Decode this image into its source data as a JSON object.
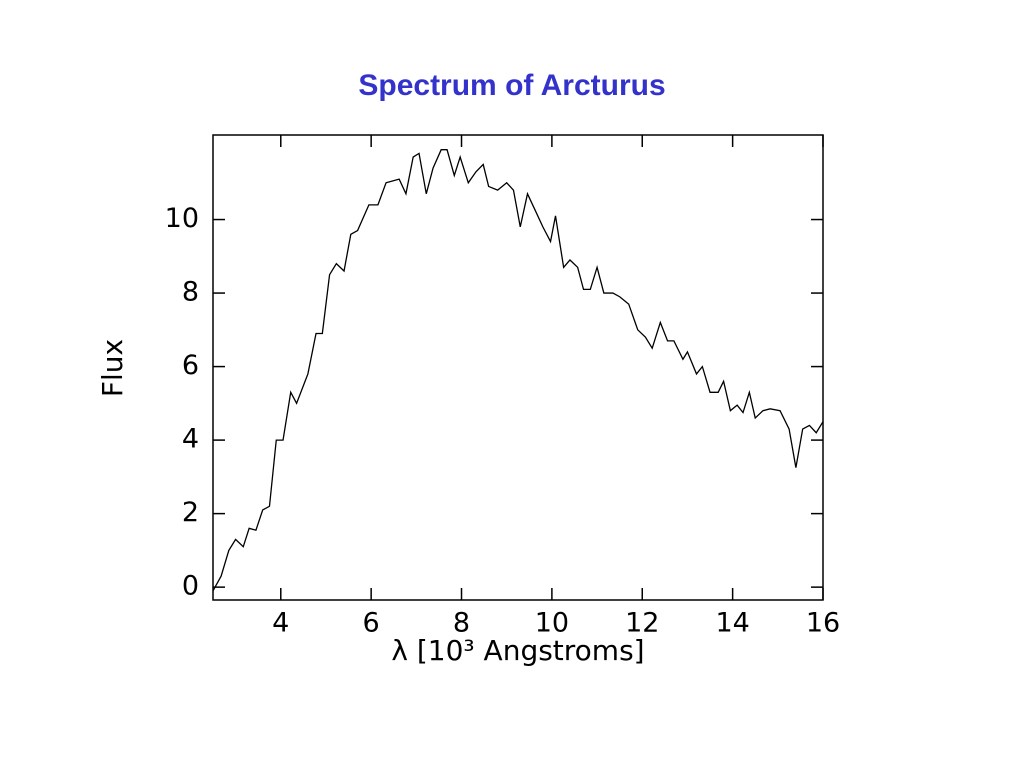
{
  "chart_data": {
    "type": "line",
    "title": "Spectrum of Arcturus",
    "x_label": "λ [10³ Angstroms]",
    "y_label": "Flux",
    "xlim": [
      2.5,
      16
    ],
    "ylim": [
      -0.35,
      12.3
    ],
    "xticks": [
      4,
      6,
      8,
      10,
      12,
      14,
      16
    ],
    "yticks": [
      0,
      2,
      4,
      6,
      8,
      10
    ],
    "series": [
      {
        "color": "#000000",
        "x": [
          2.5,
          2.68,
          2.85,
          3.0,
          3.17,
          3.3,
          3.45,
          3.6,
          3.75,
          3.9,
          4.05,
          4.22,
          4.35,
          4.6,
          4.78,
          4.92,
          5.08,
          5.23,
          5.4,
          5.55,
          5.7,
          5.95,
          6.15,
          6.33,
          6.62,
          6.77,
          6.93,
          7.06,
          7.22,
          7.37,
          7.55,
          7.68,
          7.84,
          7.97,
          8.15,
          8.32,
          8.48,
          8.6,
          8.8,
          9.0,
          9.15,
          9.3,
          9.46,
          9.65,
          9.8,
          9.97,
          10.08,
          10.26,
          10.4,
          10.57,
          10.7,
          10.85,
          11.0,
          11.15,
          11.35,
          11.5,
          11.7,
          11.9,
          12.07,
          12.22,
          12.4,
          12.56,
          12.7,
          12.9,
          13.0,
          13.2,
          13.33,
          13.5,
          13.68,
          13.8,
          13.95,
          14.1,
          14.23,
          14.37,
          14.5,
          14.67,
          14.83,
          15.05,
          15.25,
          15.4,
          15.55,
          15.7,
          15.85,
          16.0
        ],
        "values": [
          -0.1,
          0.3,
          1.0,
          1.3,
          1.1,
          1.6,
          1.55,
          2.1,
          2.2,
          4.0,
          4.0,
          5.3,
          5.0,
          5.8,
          6.9,
          6.9,
          8.5,
          8.8,
          8.6,
          9.6,
          9.7,
          10.4,
          10.4,
          11.0,
          11.1,
          10.7,
          11.7,
          11.8,
          10.7,
          11.4,
          11.9,
          11.9,
          11.2,
          11.7,
          11.0,
          11.3,
          11.5,
          10.9,
          10.8,
          11.0,
          10.8,
          9.8,
          10.7,
          10.2,
          9.8,
          9.4,
          10.1,
          8.7,
          8.9,
          8.7,
          8.1,
          8.1,
          8.7,
          8.0,
          8.0,
          7.9,
          7.7,
          7.0,
          6.8,
          6.5,
          7.2,
          6.7,
          6.7,
          6.2,
          6.4,
          5.8,
          6.0,
          5.3,
          5.3,
          5.6,
          4.8,
          4.95,
          4.75,
          5.3,
          4.6,
          4.8,
          4.85,
          4.8,
          4.3,
          3.25,
          4.3,
          4.4,
          4.2,
          4.5
        ]
      }
    ]
  }
}
